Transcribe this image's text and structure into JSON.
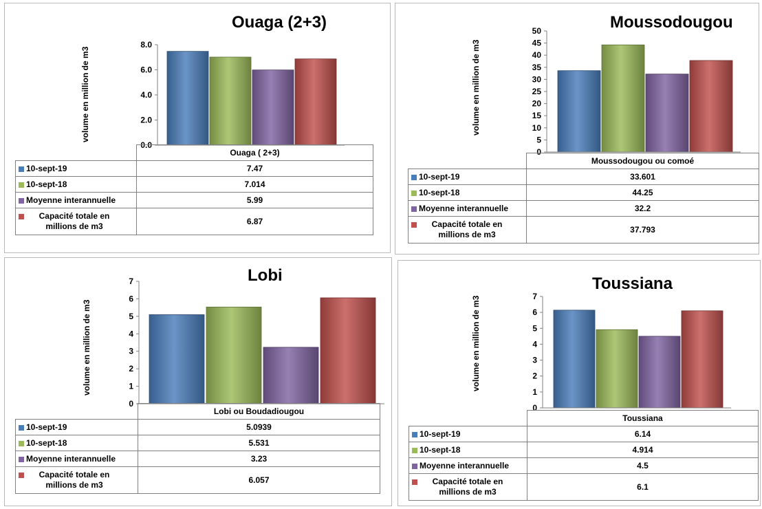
{
  "legend": {
    "series": [
      {
        "label": "10-sept-19",
        "color": "#4a7ebb"
      },
      {
        "label": "10-sept-18",
        "color": "#9bbb59"
      },
      {
        "label": "Moyenne interannuelle",
        "color": "#8064a2"
      },
      {
        "label": "Capacité totale en millions de m3",
        "color": "#c0504d"
      }
    ]
  },
  "chart_data": [
    {
      "type": "bar",
      "title": "Ouaga (2+3)",
      "ylabel": "volume en million de m3",
      "ylim": [
        0,
        8
      ],
      "yticks": [
        "0.0",
        "2.0",
        "4.0",
        "6.0",
        "8.0"
      ],
      "categories": [
        "Ouaga ( 2+3)"
      ],
      "series": [
        {
          "name": "10-sept-19",
          "values": [
            7.47
          ],
          "label": "7.47"
        },
        {
          "name": "10-sept-18",
          "values": [
            7.014
          ],
          "label": "7.014"
        },
        {
          "name": "Moyenne interannuelle",
          "values": [
            5.99
          ],
          "label": "5.99"
        },
        {
          "name": "Capacité totale en millions de m3",
          "values": [
            6.87
          ],
          "label": "6.87"
        }
      ]
    },
    {
      "type": "bar",
      "title": "Moussodougou",
      "ylabel": "volume en million de m3",
      "ylim": [
        0,
        50
      ],
      "yticks": [
        "0",
        "5",
        "10",
        "15",
        "20",
        "25",
        "30",
        "35",
        "40",
        "45",
        "50"
      ],
      "categories": [
        "Moussodougou ou comoé"
      ],
      "series": [
        {
          "name": "10-sept-19",
          "values": [
            33.601
          ],
          "label": "33.601"
        },
        {
          "name": "10-sept-18",
          "values": [
            44.25
          ],
          "label": "44.25"
        },
        {
          "name": "Moyenne interannuelle",
          "values": [
            32.2
          ],
          "label": "32.2"
        },
        {
          "name": "Capacité totale en millions de m3",
          "values": [
            37.793
          ],
          "label": "37.793"
        }
      ]
    },
    {
      "type": "bar",
      "title": "Lobi",
      "ylabel": "volume en million de m3",
      "ylim": [
        0,
        7
      ],
      "yticks": [
        "0",
        "1",
        "2",
        "3",
        "4",
        "5",
        "6",
        "7"
      ],
      "categories": [
        "Lobi ou Boudadiougou"
      ],
      "series": [
        {
          "name": "10-sept-19",
          "values": [
            5.0939
          ],
          "label": "5.0939"
        },
        {
          "name": "10-sept-18",
          "values": [
            5.531
          ],
          "label": "5.531"
        },
        {
          "name": "Moyenne interannuelle",
          "values": [
            3.23
          ],
          "label": "3.23"
        },
        {
          "name": "Capacité totale en millions de m3",
          "values": [
            6.057
          ],
          "label": "6.057"
        }
      ]
    },
    {
      "type": "bar",
      "title": "Toussiana",
      "ylabel": "volume en million de m3",
      "ylim": [
        0,
        7
      ],
      "yticks": [
        "0",
        "1",
        "2",
        "3",
        "4",
        "5",
        "6",
        "7"
      ],
      "categories": [
        "Toussiana"
      ],
      "series": [
        {
          "name": "10-sept-19",
          "values": [
            6.14
          ],
          "label": "6.14"
        },
        {
          "name": "10-sept-18",
          "values": [
            4.914
          ],
          "label": "4.914"
        },
        {
          "name": "Moyenne interannuelle",
          "values": [
            4.5
          ],
          "label": "4.5"
        },
        {
          "name": "Capacité totale en millions de m3",
          "values": [
            6.1
          ],
          "label": "6.1"
        }
      ]
    }
  ]
}
